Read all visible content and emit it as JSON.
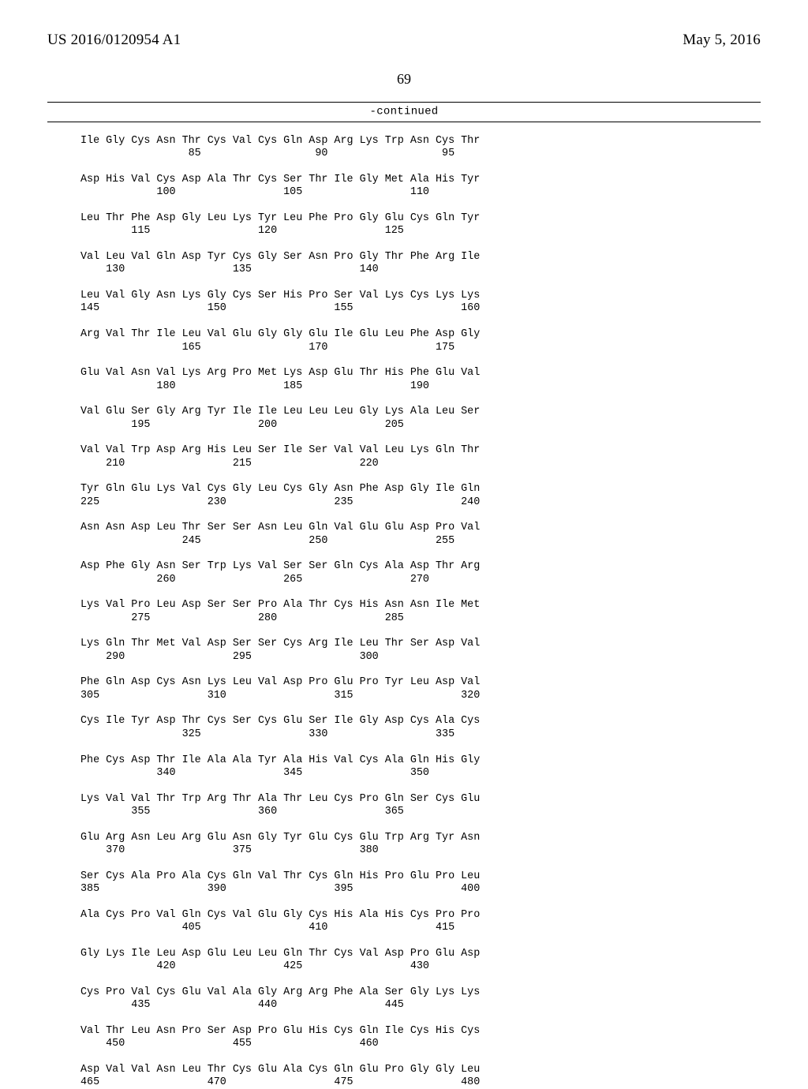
{
  "header": {
    "publication_number": "US 2016/0120954 A1",
    "publication_date": "May 5, 2016"
  },
  "page_number": "69",
  "continued_label": "-continued",
  "sequence": {
    "colors": {
      "text": "#000000",
      "background": "#ffffff",
      "rule": "#000000"
    },
    "font": {
      "family": "Courier New",
      "size_pt": 10
    },
    "rows": [
      {
        "aa": [
          "Ile",
          "Gly",
          "Cys",
          "Asn",
          "Thr",
          "Cys",
          "Val",
          "Cys",
          "Gln",
          "Asp",
          "Arg",
          "Lys",
          "Trp",
          "Asn",
          "Cys",
          "Thr"
        ],
        "nums": {
          "4": "85",
          "9": "90",
          "14": "95"
        }
      },
      {
        "aa": [
          "Asp",
          "His",
          "Val",
          "Cys",
          "Asp",
          "Ala",
          "Thr",
          "Cys",
          "Ser",
          "Thr",
          "Ile",
          "Gly",
          "Met",
          "Ala",
          "His",
          "Tyr"
        ],
        "nums": {
          "3": "100",
          "8": "105",
          "13": "110"
        }
      },
      {
        "aa": [
          "Leu",
          "Thr",
          "Phe",
          "Asp",
          "Gly",
          "Leu",
          "Lys",
          "Tyr",
          "Leu",
          "Phe",
          "Pro",
          "Gly",
          "Glu",
          "Cys",
          "Gln",
          "Tyr"
        ],
        "nums": {
          "2": "115",
          "7": "120",
          "12": "125"
        }
      },
      {
        "aa": [
          "Val",
          "Leu",
          "Val",
          "Gln",
          "Asp",
          "Tyr",
          "Cys",
          "Gly",
          "Ser",
          "Asn",
          "Pro",
          "Gly",
          "Thr",
          "Phe",
          "Arg",
          "Ile"
        ],
        "nums": {
          "1": "130",
          "6": "135",
          "11": "140"
        }
      },
      {
        "aa": [
          "Leu",
          "Val",
          "Gly",
          "Asn",
          "Lys",
          "Gly",
          "Cys",
          "Ser",
          "His",
          "Pro",
          "Ser",
          "Val",
          "Lys",
          "Cys",
          "Lys",
          "Lys"
        ],
        "nums": {
          "0": "145",
          "5": "150",
          "10": "155",
          "15": "160"
        }
      },
      {
        "aa": [
          "Arg",
          "Val",
          "Thr",
          "Ile",
          "Leu",
          "Val",
          "Glu",
          "Gly",
          "Gly",
          "Glu",
          "Ile",
          "Glu",
          "Leu",
          "Phe",
          "Asp",
          "Gly"
        ],
        "nums": {
          "4": "165",
          "9": "170",
          "14": "175"
        }
      },
      {
        "aa": [
          "Glu",
          "Val",
          "Asn",
          "Val",
          "Lys",
          "Arg",
          "Pro",
          "Met",
          "Lys",
          "Asp",
          "Glu",
          "Thr",
          "His",
          "Phe",
          "Glu",
          "Val"
        ],
        "nums": {
          "3": "180",
          "8": "185",
          "13": "190"
        }
      },
      {
        "aa": [
          "Val",
          "Glu",
          "Ser",
          "Gly",
          "Arg",
          "Tyr",
          "Ile",
          "Ile",
          "Leu",
          "Leu",
          "Leu",
          "Gly",
          "Lys",
          "Ala",
          "Leu",
          "Ser"
        ],
        "nums": {
          "2": "195",
          "7": "200",
          "12": "205"
        }
      },
      {
        "aa": [
          "Val",
          "Val",
          "Trp",
          "Asp",
          "Arg",
          "His",
          "Leu",
          "Ser",
          "Ile",
          "Ser",
          "Val",
          "Val",
          "Leu",
          "Lys",
          "Gln",
          "Thr"
        ],
        "nums": {
          "1": "210",
          "6": "215",
          "11": "220"
        }
      },
      {
        "aa": [
          "Tyr",
          "Gln",
          "Glu",
          "Lys",
          "Val",
          "Cys",
          "Gly",
          "Leu",
          "Cys",
          "Gly",
          "Asn",
          "Phe",
          "Asp",
          "Gly",
          "Ile",
          "Gln"
        ],
        "nums": {
          "0": "225",
          "5": "230",
          "10": "235",
          "15": "240"
        }
      },
      {
        "aa": [
          "Asn",
          "Asn",
          "Asp",
          "Leu",
          "Thr",
          "Ser",
          "Ser",
          "Asn",
          "Leu",
          "Gln",
          "Val",
          "Glu",
          "Glu",
          "Asp",
          "Pro",
          "Val"
        ],
        "nums": {
          "4": "245",
          "9": "250",
          "14": "255"
        }
      },
      {
        "aa": [
          "Asp",
          "Phe",
          "Gly",
          "Asn",
          "Ser",
          "Trp",
          "Lys",
          "Val",
          "Ser",
          "Ser",
          "Gln",
          "Cys",
          "Ala",
          "Asp",
          "Thr",
          "Arg"
        ],
        "nums": {
          "3": "260",
          "8": "265",
          "13": "270"
        }
      },
      {
        "aa": [
          "Lys",
          "Val",
          "Pro",
          "Leu",
          "Asp",
          "Ser",
          "Ser",
          "Pro",
          "Ala",
          "Thr",
          "Cys",
          "His",
          "Asn",
          "Asn",
          "Ile",
          "Met"
        ],
        "nums": {
          "2": "275",
          "7": "280",
          "12": "285"
        }
      },
      {
        "aa": [
          "Lys",
          "Gln",
          "Thr",
          "Met",
          "Val",
          "Asp",
          "Ser",
          "Ser",
          "Cys",
          "Arg",
          "Ile",
          "Leu",
          "Thr",
          "Ser",
          "Asp",
          "Val"
        ],
        "nums": {
          "1": "290",
          "6": "295",
          "11": "300"
        }
      },
      {
        "aa": [
          "Phe",
          "Gln",
          "Asp",
          "Cys",
          "Asn",
          "Lys",
          "Leu",
          "Val",
          "Asp",
          "Pro",
          "Glu",
          "Pro",
          "Tyr",
          "Leu",
          "Asp",
          "Val"
        ],
        "nums": {
          "0": "305",
          "5": "310",
          "10": "315",
          "15": "320"
        }
      },
      {
        "aa": [
          "Cys",
          "Ile",
          "Tyr",
          "Asp",
          "Thr",
          "Cys",
          "Ser",
          "Cys",
          "Glu",
          "Ser",
          "Ile",
          "Gly",
          "Asp",
          "Cys",
          "Ala",
          "Cys"
        ],
        "nums": {
          "4": "325",
          "9": "330",
          "14": "335"
        }
      },
      {
        "aa": [
          "Phe",
          "Cys",
          "Asp",
          "Thr",
          "Ile",
          "Ala",
          "Ala",
          "Tyr",
          "Ala",
          "His",
          "Val",
          "Cys",
          "Ala",
          "Gln",
          "His",
          "Gly"
        ],
        "nums": {
          "3": "340",
          "8": "345",
          "13": "350"
        }
      },
      {
        "aa": [
          "Lys",
          "Val",
          "Val",
          "Thr",
          "Trp",
          "Arg",
          "Thr",
          "Ala",
          "Thr",
          "Leu",
          "Cys",
          "Pro",
          "Gln",
          "Ser",
          "Cys",
          "Glu"
        ],
        "nums": {
          "2": "355",
          "7": "360",
          "12": "365"
        }
      },
      {
        "aa": [
          "Glu",
          "Arg",
          "Asn",
          "Leu",
          "Arg",
          "Glu",
          "Asn",
          "Gly",
          "Tyr",
          "Glu",
          "Cys",
          "Glu",
          "Trp",
          "Arg",
          "Tyr",
          "Asn"
        ],
        "nums": {
          "1": "370",
          "6": "375",
          "11": "380"
        }
      },
      {
        "aa": [
          "Ser",
          "Cys",
          "Ala",
          "Pro",
          "Ala",
          "Cys",
          "Gln",
          "Val",
          "Thr",
          "Cys",
          "Gln",
          "His",
          "Pro",
          "Glu",
          "Pro",
          "Leu"
        ],
        "nums": {
          "0": "385",
          "5": "390",
          "10": "395",
          "15": "400"
        }
      },
      {
        "aa": [
          "Ala",
          "Cys",
          "Pro",
          "Val",
          "Gln",
          "Cys",
          "Val",
          "Glu",
          "Gly",
          "Cys",
          "His",
          "Ala",
          "His",
          "Cys",
          "Pro",
          "Pro"
        ],
        "nums": {
          "4": "405",
          "9": "410",
          "14": "415"
        }
      },
      {
        "aa": [
          "Gly",
          "Lys",
          "Ile",
          "Leu",
          "Asp",
          "Glu",
          "Leu",
          "Leu",
          "Gln",
          "Thr",
          "Cys",
          "Val",
          "Asp",
          "Pro",
          "Glu",
          "Asp"
        ],
        "nums": {
          "3": "420",
          "8": "425",
          "13": "430"
        }
      },
      {
        "aa": [
          "Cys",
          "Pro",
          "Val",
          "Cys",
          "Glu",
          "Val",
          "Ala",
          "Gly",
          "Arg",
          "Arg",
          "Phe",
          "Ala",
          "Ser",
          "Gly",
          "Lys",
          "Lys"
        ],
        "nums": {
          "2": "435",
          "7": "440",
          "12": "445"
        }
      },
      {
        "aa": [
          "Val",
          "Thr",
          "Leu",
          "Asn",
          "Pro",
          "Ser",
          "Asp",
          "Pro",
          "Glu",
          "His",
          "Cys",
          "Gln",
          "Ile",
          "Cys",
          "His",
          "Cys"
        ],
        "nums": {
          "1": "450",
          "6": "455",
          "11": "460"
        }
      },
      {
        "aa": [
          "Asp",
          "Val",
          "Val",
          "Asn",
          "Leu",
          "Thr",
          "Cys",
          "Glu",
          "Ala",
          "Cys",
          "Gln",
          "Glu",
          "Pro",
          "Gly",
          "Gly",
          "Leu"
        ],
        "nums": {
          "0": "465",
          "5": "470",
          "10": "475",
          "15": "480"
        }
      }
    ]
  }
}
